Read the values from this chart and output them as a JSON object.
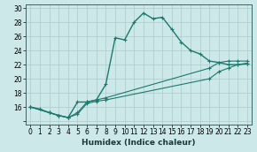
{
  "xlabel": "Humidex (Indice chaleur)",
  "bg_color": "#cce8e8",
  "grid_color": "#aacccc",
  "line_color": "#1a7a6e",
  "xlim": [
    -0.5,
    23.5
  ],
  "ylim": [
    13.5,
    30.5
  ],
  "xticks": [
    0,
    1,
    2,
    3,
    4,
    5,
    6,
    7,
    8,
    9,
    10,
    11,
    12,
    13,
    14,
    15,
    16,
    17,
    18,
    19,
    20,
    21,
    22,
    23
  ],
  "yticks": [
    14,
    16,
    18,
    20,
    22,
    24,
    26,
    28,
    30
  ],
  "ytick_labels": [
    "",
    "16",
    "18",
    "20",
    "22",
    "24",
    "26",
    "28",
    "30"
  ],
  "series": [
    {
      "x": [
        0,
        1,
        2,
        3,
        4,
        5,
        6,
        7,
        8,
        9,
        10,
        11,
        12,
        13,
        14,
        15,
        16,
        17,
        18,
        19,
        20,
        21,
        22,
        23
      ],
      "y": [
        16,
        15.7,
        15.2,
        14.8,
        14.5,
        16.7,
        16.7,
        17.0,
        19.2,
        25.8,
        25.5,
        28.0,
        29.3,
        28.5,
        28.7,
        27.0,
        25.2,
        24.0,
        23.5,
        22.5,
        22.3,
        22.0,
        22.0,
        22.1
      ]
    },
    {
      "x": [
        0,
        2,
        3,
        4,
        5,
        6,
        7,
        8,
        19,
        20,
        21,
        22,
        23
      ],
      "y": [
        16,
        15.2,
        14.8,
        14.5,
        15.2,
        16.7,
        17.0,
        17.3,
        21.5,
        22.3,
        22.5,
        22.5,
        22.5
      ]
    },
    {
      "x": [
        0,
        2,
        3,
        4,
        5,
        6,
        7,
        8,
        19,
        20,
        21,
        22,
        23
      ],
      "y": [
        16,
        15.2,
        14.8,
        14.5,
        15.0,
        16.5,
        16.8,
        17.0,
        20.0,
        21.0,
        21.5,
        22.0,
        22.2
      ]
    }
  ]
}
